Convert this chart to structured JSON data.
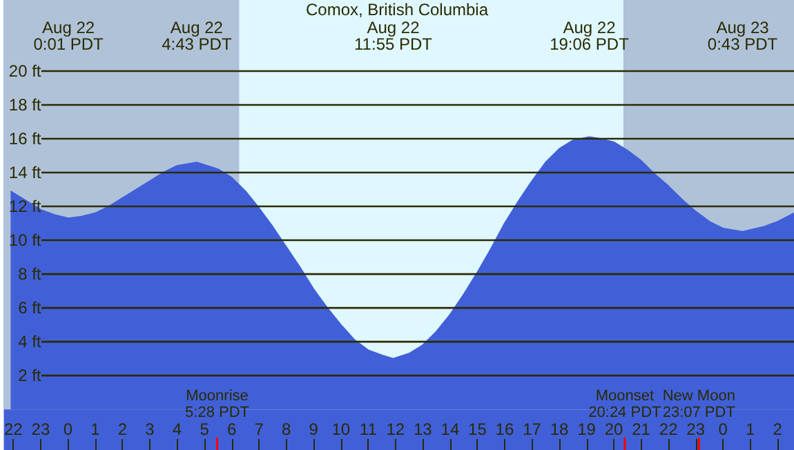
{
  "chart_data": {
    "type": "area",
    "title": "Comox, British Columbia",
    "x": [
      "--08-21T21:54",
      "--08-21T22:30",
      "--08-21T23:00",
      "--08-21T23:30",
      "--08-22T00:01",
      "--08-22T00:30",
      "--08-22T01:00",
      "--08-22T01:30",
      "--08-22T02:00",
      "--08-22T02:30",
      "--08-22T03:00",
      "--08-22T03:30",
      "--08-22T04:00",
      "--08-22T04:43",
      "--08-22T05:30",
      "--08-22T06:00",
      "--08-22T06:30",
      "--08-22T07:00",
      "--08-22T07:30",
      "--08-22T08:00",
      "--08-22T08:30",
      "--08-22T09:00",
      "--08-22T09:30",
      "--08-22T10:00",
      "--08-22T10:30",
      "--08-22T11:00",
      "--08-22T11:30",
      "--08-22T11:55",
      "--08-22T12:30",
      "--08-22T13:00",
      "--08-22T13:30",
      "--08-22T14:00",
      "--08-22T14:30",
      "--08-22T15:00",
      "--08-22T15:30",
      "--08-22T16:00",
      "--08-22T16:30",
      "--08-22T17:00",
      "--08-22T17:30",
      "--08-22T18:00",
      "--08-22T18:30",
      "--08-22T19:06",
      "--08-22T19:30",
      "--08-22T20:00",
      "--08-22T20:30",
      "--08-22T21:00",
      "--08-22T21:30",
      "--08-22T22:00",
      "--08-22T22:30",
      "--08-22T23:00",
      "--08-22T23:30",
      "--08-23T00:00",
      "--08-23T00:43",
      "--08-23T01:30",
      "--08-23T02:00",
      "--08-23T02:36"
    ],
    "series": [
      {
        "color": "#4160d8",
        "values": [
          12.9,
          12.3,
          11.8,
          11.5,
          11.3,
          11.4,
          11.6,
          12.0,
          12.5,
          13.0,
          13.5,
          14.0,
          14.4,
          14.6,
          14.2,
          13.7,
          12.9,
          11.9,
          10.8,
          9.6,
          8.4,
          7.1,
          6.0,
          5.0,
          4.1,
          3.5,
          3.2,
          3.0,
          3.3,
          3.8,
          4.6,
          5.6,
          6.8,
          8.1,
          9.5,
          11.0,
          12.3,
          13.5,
          14.6,
          15.4,
          15.9,
          16.1,
          16.0,
          15.8,
          15.3,
          14.7,
          13.9,
          13.2,
          12.4,
          11.7,
          11.1,
          10.7,
          10.5,
          10.8,
          11.1,
          11.6
        ]
      }
    ],
    "xlim": [
      "--08-21T21:39",
      "--08-23T02:36"
    ],
    "ylim": [
      -2.4,
      24.2
    ],
    "xticks": [
      {
        "value": "--08-21T22:00",
        "label": "22"
      },
      {
        "value": "--08-21T23:00",
        "label": "23"
      },
      {
        "value": "--08-22T00:00",
        "label": "0"
      },
      {
        "value": "--08-22T01:00",
        "label": "1"
      },
      {
        "value": "--08-22T02:00",
        "label": "2"
      },
      {
        "value": "--08-22T03:00",
        "label": "3"
      },
      {
        "value": "--08-22T04:00",
        "label": "4"
      },
      {
        "value": "--08-22T05:00",
        "label": "5"
      },
      {
        "value": "--08-22T06:00",
        "label": "6"
      },
      {
        "value": "--08-22T07:00",
        "label": "7"
      },
      {
        "value": "--08-22T08:00",
        "label": "8"
      },
      {
        "value": "--08-22T09:00",
        "label": "9"
      },
      {
        "value": "--08-22T10:00",
        "label": "10"
      },
      {
        "value": "--08-22T11:00",
        "label": "11"
      },
      {
        "value": "--08-22T12:00",
        "label": "12"
      },
      {
        "value": "--08-22T13:00",
        "label": "13"
      },
      {
        "value": "--08-22T14:00",
        "label": "14"
      },
      {
        "value": "--08-22T15:00",
        "label": "15"
      },
      {
        "value": "--08-22T16:00",
        "label": "16"
      },
      {
        "value": "--08-22T17:00",
        "label": "17"
      },
      {
        "value": "--08-22T18:00",
        "label": "18"
      },
      {
        "value": "--08-22T19:00",
        "label": "19"
      },
      {
        "value": "--08-22T20:00",
        "label": "20"
      },
      {
        "value": "--08-22T21:00",
        "label": "21"
      },
      {
        "value": "--08-22T22:00",
        "label": "22"
      },
      {
        "value": "--08-22T23:00",
        "label": "23"
      },
      {
        "value": "--08-23T00:00",
        "label": "0"
      },
      {
        "value": "--08-23T01:00",
        "label": "1"
      },
      {
        "value": "--08-23T02:00",
        "label": "2"
      }
    ],
    "yticks": [
      {
        "value": 2,
        "label": "2 ft"
      },
      {
        "value": 4,
        "label": "4 ft"
      },
      {
        "value": 6,
        "label": "6 ft"
      },
      {
        "value": 8,
        "label": "8 ft"
      },
      {
        "value": 10,
        "label": "10 ft"
      },
      {
        "value": 12,
        "label": "12 ft"
      },
      {
        "value": 14,
        "label": "14 ft"
      },
      {
        "value": 16,
        "label": "16 ft"
      },
      {
        "value": 18,
        "label": "18 ft"
      },
      {
        "value": 20,
        "label": "20 ft"
      }
    ],
    "grid": "y",
    "bands": [
      {
        "axis": "x",
        "from": "--08-21T21:39",
        "to": "--08-22T06:16",
        "color": "#b0c2d8"
      },
      {
        "axis": "x",
        "from": "--08-22T06:16",
        "to": "--08-22T20:22",
        "color": "#dff7ff"
      },
      {
        "axis": "x",
        "from": "--08-22T20:22",
        "to": "--08-23T02:36",
        "color": "#b0c2d8"
      }
    ],
    "ref_lines": [
      {
        "axis": "x",
        "value": "--08-22T05:28",
        "label": "Moonrise\n5:28 PDT",
        "color": "#ff0000"
      },
      {
        "axis": "x",
        "value": "--08-22T20:24",
        "label": "Moonset\n20:24 PDT",
        "color": "#ff0000"
      },
      {
        "axis": "x",
        "value": "--08-22T23:07",
        "label": "New Moon\n23:07 PDT",
        "color": "#ff0000"
      }
    ],
    "annotations": [
      "Aug 22\n0:01 PDT",
      "Aug 22\n4:43 PDT",
      "Aug 22\n11:55 PDT",
      "Aug 22\n19:06 PDT",
      "Aug 23\n0:43 PDT"
    ]
  }
}
